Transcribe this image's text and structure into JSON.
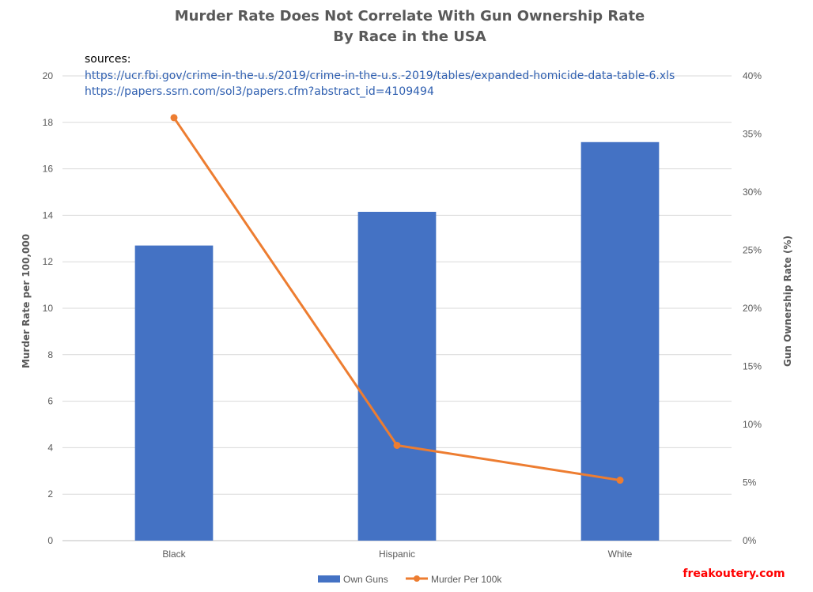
{
  "chart_data": {
    "type": "bar",
    "title": "Murder Rate Does Not Correlate With Gun Ownership Rate",
    "subtitle": "By Race in the USA",
    "categories": [
      "Black",
      "Hispanic",
      "White"
    ],
    "series": [
      {
        "name": "Own Guns",
        "type": "bar",
        "axis": "right",
        "values": [
          25.4,
          28.3,
          34.3
        ],
        "color": "#4472c4"
      },
      {
        "name": "Murder Per 100k",
        "type": "line",
        "axis": "left",
        "values": [
          18.2,
          4.1,
          2.6
        ],
        "color": "#ed7d31"
      }
    ],
    "ylabel": "Murder Rate per 100,000",
    "ylabel_right": "Gun Ownership Rate (%)",
    "ylim": [
      0,
      20
    ],
    "ylim_right": [
      0,
      40
    ],
    "yticks": [
      "0",
      "2",
      "4",
      "6",
      "8",
      "10",
      "12",
      "14",
      "16",
      "18",
      "20"
    ],
    "yticks_right": [
      "0%",
      "5%",
      "10%",
      "15%",
      "20%",
      "25%",
      "30%",
      "35%",
      "40%"
    ],
    "grid": true,
    "legend": "bottom-center"
  },
  "sources": {
    "label": "sources:",
    "links": [
      "https://ucr.fbi.gov/crime-in-the-u.s/2019/crime-in-the-u.s.-2019/tables/expanded-homicide-data-table-6.xls",
      "https://papers.ssrn.com/sol3/papers.cfm?abstract_id=4109494"
    ]
  },
  "watermark": "freakoutery.com"
}
